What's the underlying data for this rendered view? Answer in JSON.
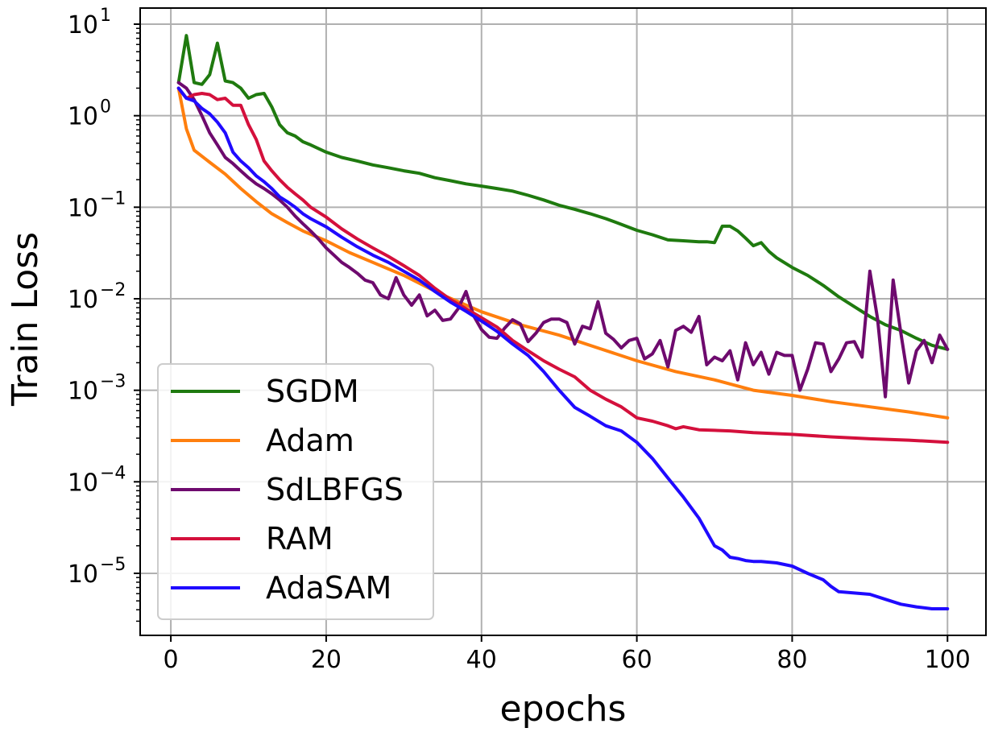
{
  "chart_data": {
    "type": "line",
    "xlabel": "epochs",
    "ylabel": "Train Loss",
    "yscale": "log",
    "xlim": [
      -3.95,
      104.95
    ],
    "ylim": [
      2.1e-06,
      15
    ],
    "xticks": [
      "0",
      "20",
      "40",
      "60",
      "80",
      "100"
    ],
    "ytick_exponents": [
      "1",
      "0",
      "−1",
      "−2",
      "−3",
      "−4",
      "−5"
    ],
    "ytick_base": "10",
    "grid": true,
    "legend_position": "lower-left",
    "series": [
      {
        "name": "SGDM",
        "color": "#1f7a0f",
        "x": [
          1,
          2,
          3,
          4,
          5,
          6,
          7,
          8,
          9,
          10,
          11,
          12,
          13,
          14,
          15,
          16,
          17,
          18,
          20,
          22,
          24,
          26,
          28,
          30,
          32,
          34,
          36,
          38,
          40,
          42,
          44,
          46,
          48,
          50,
          52,
          54,
          56,
          58,
          60,
          62,
          64,
          66,
          68,
          69,
          70,
          71,
          72,
          73,
          74,
          75,
          76,
          77,
          78,
          80,
          82,
          84,
          86,
          88,
          90,
          92,
          94,
          96,
          98,
          100
        ],
        "y": [
          2.3,
          7.5,
          2.3,
          2.2,
          2.8,
          6.2,
          2.4,
          2.3,
          2.0,
          1.55,
          1.7,
          1.75,
          1.25,
          0.8,
          0.65,
          0.6,
          0.52,
          0.48,
          0.4,
          0.35,
          0.32,
          0.29,
          0.27,
          0.25,
          0.235,
          0.21,
          0.195,
          0.18,
          0.17,
          0.16,
          0.15,
          0.135,
          0.12,
          0.105,
          0.095,
          0.085,
          0.075,
          0.065,
          0.056,
          0.05,
          0.044,
          0.043,
          0.042,
          0.042,
          0.041,
          0.062,
          0.062,
          0.055,
          0.046,
          0.038,
          0.041,
          0.033,
          0.028,
          0.022,
          0.018,
          0.014,
          0.0105,
          0.0082,
          0.0064,
          0.0052,
          0.0045,
          0.0037,
          0.0031,
          0.0028
        ]
      },
      {
        "name": "Adam",
        "color": "#ff7f0e",
        "x": [
          1,
          2,
          3,
          5,
          7,
          9,
          11,
          13,
          15,
          17,
          20,
          23,
          26,
          30,
          35,
          40,
          45,
          50,
          55,
          60,
          65,
          70,
          75,
          80,
          85,
          90,
          95,
          100
        ],
        "y": [
          2.0,
          0.72,
          0.42,
          0.31,
          0.23,
          0.16,
          0.115,
          0.085,
          0.068,
          0.055,
          0.043,
          0.032,
          0.025,
          0.018,
          0.011,
          0.0072,
          0.0052,
          0.004,
          0.0029,
          0.0021,
          0.0016,
          0.0013,
          0.001,
          0.00088,
          0.00075,
          0.00066,
          0.00058,
          0.0005
        ]
      },
      {
        "name": "SdLBFGS",
        "color": "#6e0a6e",
        "x": [
          1,
          2,
          3,
          4,
          5,
          6,
          7,
          8,
          9,
          10,
          11,
          12,
          13,
          14,
          15,
          16,
          17,
          18,
          19,
          20,
          21,
          22,
          23,
          24,
          25,
          26,
          27,
          28,
          29,
          30,
          31,
          32,
          33,
          34,
          35,
          36,
          37,
          38,
          39,
          40,
          41,
          42,
          43,
          44,
          45,
          46,
          47,
          48,
          49,
          50,
          51,
          52,
          53,
          54,
          55,
          56,
          57,
          58,
          59,
          60,
          61,
          62,
          63,
          64,
          65,
          66,
          67,
          68,
          69,
          70,
          71,
          72,
          73,
          74,
          75,
          76,
          77,
          78,
          79,
          80,
          81,
          82,
          83,
          84,
          85,
          86,
          87,
          88,
          89,
          90,
          91,
          92,
          93,
          94,
          95,
          96,
          97,
          98,
          99,
          100
        ],
        "y": [
          2.3,
          2.0,
          1.5,
          1.0,
          0.65,
          0.48,
          0.35,
          0.3,
          0.25,
          0.21,
          0.18,
          0.16,
          0.14,
          0.12,
          0.1,
          0.08,
          0.066,
          0.055,
          0.045,
          0.036,
          0.03,
          0.025,
          0.022,
          0.019,
          0.016,
          0.015,
          0.011,
          0.01,
          0.017,
          0.011,
          0.0085,
          0.011,
          0.0065,
          0.0075,
          0.0058,
          0.006,
          0.0078,
          0.012,
          0.0065,
          0.0046,
          0.0038,
          0.0037,
          0.0048,
          0.0059,
          0.0053,
          0.0034,
          0.0042,
          0.0055,
          0.006,
          0.006,
          0.0055,
          0.0032,
          0.005,
          0.0047,
          0.0093,
          0.0042,
          0.0036,
          0.0029,
          0.0035,
          0.0037,
          0.0022,
          0.0025,
          0.0035,
          0.0018,
          0.0045,
          0.005,
          0.0043,
          0.0064,
          0.0019,
          0.0023,
          0.0021,
          0.0027,
          0.0013,
          0.0033,
          0.0019,
          0.0026,
          0.0015,
          0.0026,
          0.0024,
          0.0024,
          0.001,
          0.0017,
          0.0033,
          0.0032,
          0.0016,
          0.0022,
          0.0033,
          0.0034,
          0.0023,
          0.02,
          0.006,
          0.00085,
          0.016,
          0.0042,
          0.0012,
          0.0027,
          0.0035,
          0.002,
          0.004,
          0.0028
        ]
      },
      {
        "name": "RAM",
        "color": "#d4103c",
        "x": [
          1,
          2,
          3,
          4,
          5,
          6,
          7,
          8,
          9,
          10,
          11,
          12,
          13,
          14,
          15,
          16,
          17,
          18,
          20,
          22,
          24,
          26,
          28,
          30,
          32,
          34,
          36,
          38,
          40,
          42,
          44,
          46,
          48,
          50,
          52,
          54,
          56,
          58,
          60,
          62,
          64,
          65,
          66,
          68,
          70,
          72,
          75,
          80,
          85,
          90,
          95,
          100
        ],
        "y": [
          2.0,
          1.55,
          1.7,
          1.75,
          1.7,
          1.5,
          1.55,
          1.3,
          1.3,
          0.8,
          0.55,
          0.32,
          0.25,
          0.2,
          0.165,
          0.14,
          0.12,
          0.1,
          0.078,
          0.058,
          0.045,
          0.036,
          0.029,
          0.023,
          0.018,
          0.013,
          0.0098,
          0.0078,
          0.0062,
          0.0049,
          0.0035,
          0.0027,
          0.0021,
          0.0017,
          0.0014,
          0.001,
          0.0008,
          0.00066,
          0.0005,
          0.00046,
          0.00041,
          0.00038,
          0.0004,
          0.00037,
          0.000365,
          0.00036,
          0.000345,
          0.00033,
          0.00031,
          0.000295,
          0.000285,
          0.00027
        ]
      },
      {
        "name": "AdaSAM",
        "color": "#1f0aff",
        "x": [
          1,
          2,
          3,
          4,
          5,
          6,
          7,
          8,
          9,
          10,
          11,
          12,
          13,
          14,
          15,
          16,
          17,
          18,
          20,
          22,
          24,
          26,
          28,
          30,
          32,
          34,
          36,
          38,
          40,
          42,
          44,
          46,
          48,
          50,
          52,
          54,
          56,
          58,
          60,
          62,
          64,
          66,
          68,
          70,
          71,
          72,
          73,
          74,
          75,
          76,
          78,
          80,
          82,
          84,
          85,
          86,
          88,
          90,
          92,
          94,
          96,
          98,
          100
        ],
        "y": [
          2.0,
          1.55,
          1.45,
          1.2,
          1.05,
          0.85,
          0.65,
          0.4,
          0.32,
          0.27,
          0.22,
          0.19,
          0.16,
          0.13,
          0.115,
          0.1,
          0.085,
          0.075,
          0.061,
          0.047,
          0.037,
          0.03,
          0.025,
          0.02,
          0.016,
          0.012,
          0.0092,
          0.0073,
          0.0057,
          0.0044,
          0.0032,
          0.0024,
          0.0016,
          0.001,
          0.00065,
          0.00052,
          0.00041,
          0.00036,
          0.00027,
          0.00018,
          0.00011,
          6.8e-05,
          4e-05,
          2e-05,
          1.8e-05,
          1.5e-05,
          1.45e-05,
          1.38e-05,
          1.35e-05,
          1.35e-05,
          1.3e-05,
          1.2e-05,
          1e-05,
          8.5e-06,
          7.2e-06,
          6.3e-06,
          6.1e-06,
          5.9e-06,
          5.2e-06,
          4.6e-06,
          4.3e-06,
          4.1e-06,
          4.1e-06
        ]
      }
    ]
  }
}
